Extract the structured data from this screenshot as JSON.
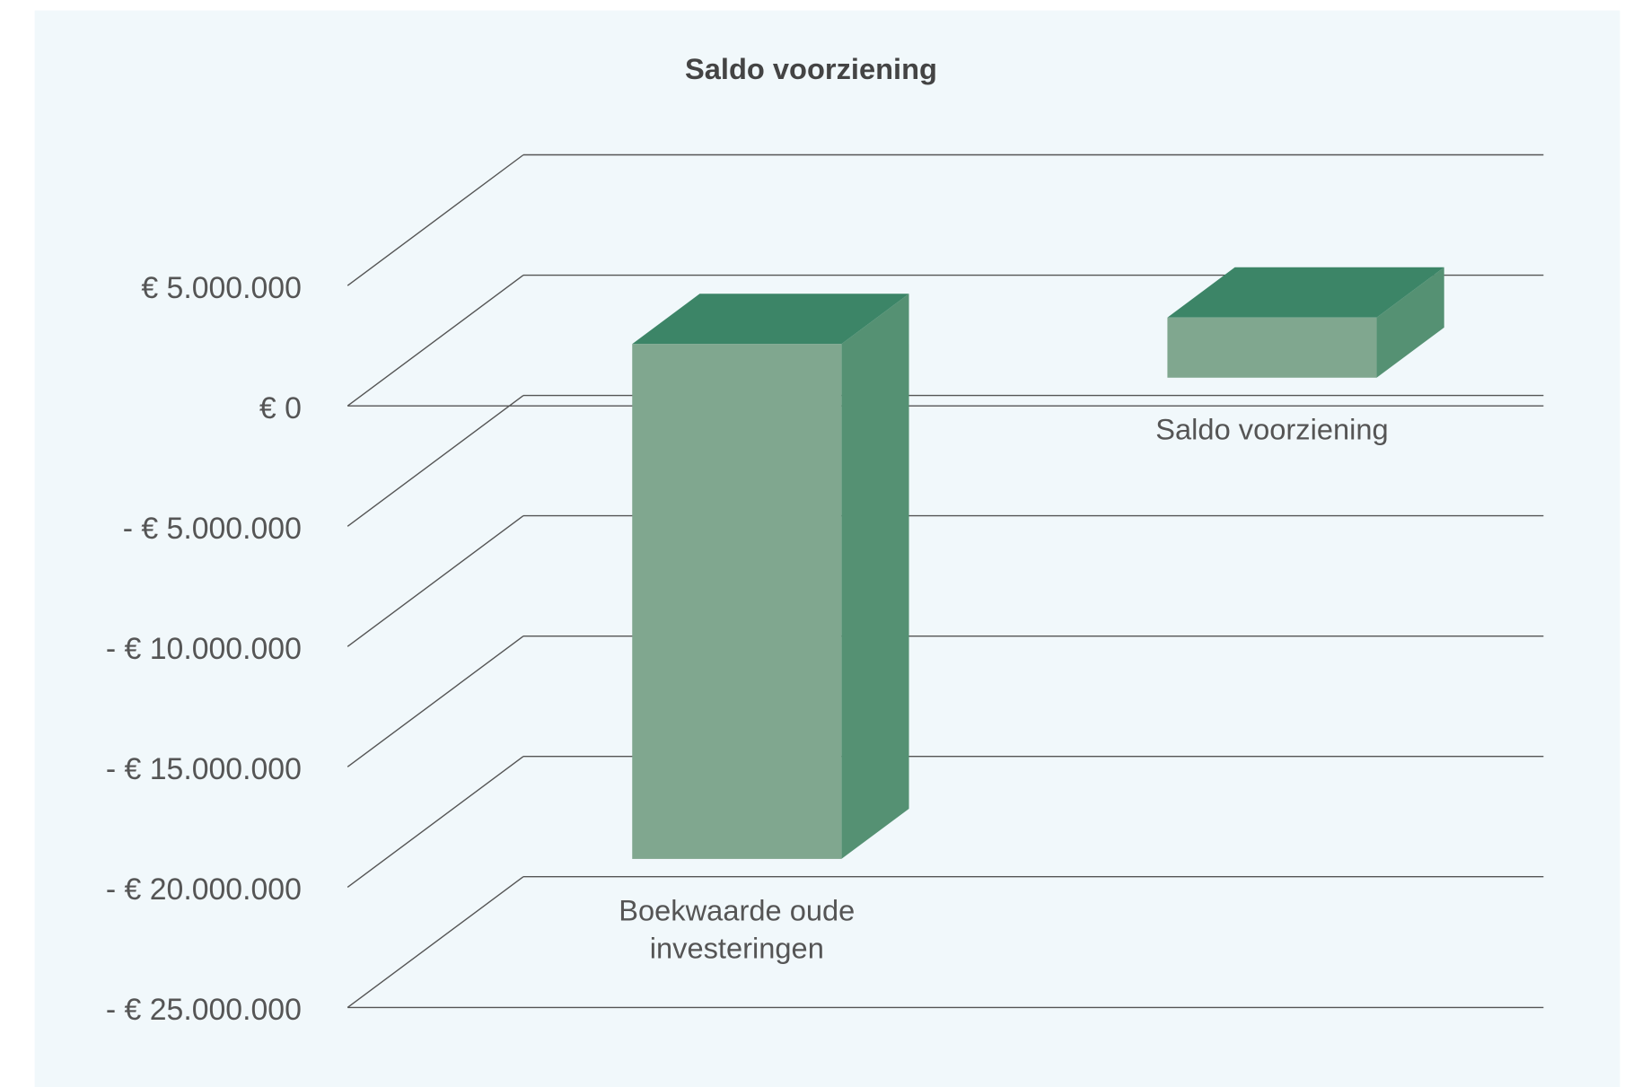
{
  "chart_data": {
    "type": "bar3d",
    "title": "Saldo voorziening",
    "categories": [
      "Boekwaarde oude investeringen",
      "Saldo voorziening"
    ],
    "values": [
      [
        -20000000,
        1400000
      ],
      [
        0,
        2500000
      ]
    ],
    "colors": {
      "front": "#80a78f",
      "top": "#3c8567",
      "side": "#559173"
    },
    "ylim": [
      -25000000,
      5000000
    ],
    "yticks": [
      {
        "value": -25000000,
        "label": "- € 25.000.000"
      },
      {
        "value": -20000000,
        "label": "- € 20.000.000"
      },
      {
        "value": -15000000,
        "label": "- € 15.000.000"
      },
      {
        "value": -10000000,
        "label": "- € 10.000.000"
      },
      {
        "value": -5000000,
        "label": "- € 5.000.000"
      },
      {
        "value": 0,
        "label": "€ 0"
      },
      {
        "value": 5000000,
        "label": "€ 5.000.000"
      }
    ],
    "grid": true
  }
}
